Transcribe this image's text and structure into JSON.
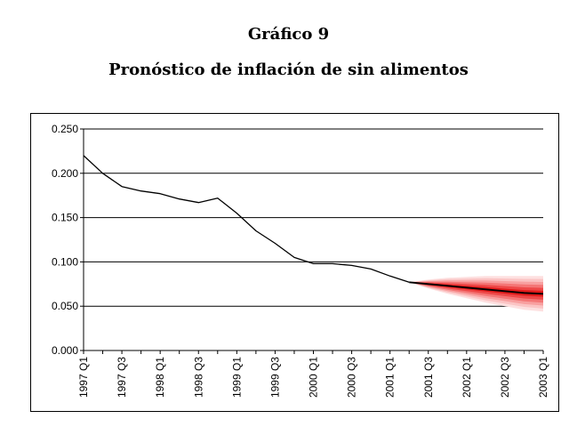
{
  "header": {
    "title": "Gráfico 9",
    "subtitle": "Pronóstico de inflación de sin alimentos"
  },
  "chart_data": {
    "type": "line",
    "title": "Pronóstico de inflación de sin alimentos",
    "xlabel": "",
    "ylabel": "",
    "x_categories": [
      "1997 Q1",
      "1997 Q2",
      "1997 Q3",
      "1997 Q4",
      "1998 Q1",
      "1998 Q2",
      "1998 Q3",
      "1998 Q4",
      "1999 Q1",
      "1999 Q2",
      "1999 Q3",
      "1999 Q4",
      "2000 Q1",
      "2000 Q2",
      "2000 Q3",
      "2000 Q4",
      "2001 Q1",
      "2001 Q2",
      "2001 Q3",
      "2001 Q4",
      "2002 Q1",
      "2002 Q2",
      "2002 Q3",
      "2002 Q4",
      "2003 Q1"
    ],
    "x_tick_labels": [
      "1997 Q1",
      "1997 Q3",
      "1998 Q1",
      "1998 Q3",
      "1999 Q1",
      "1999 Q3",
      "2000 Q1",
      "2000 Q3",
      "2001 Q1",
      "2001 Q3",
      "2002 Q1",
      "2002 Q3",
      "2003 Q1"
    ],
    "y_ticks": [
      "0.000",
      "0.050",
      "0.100",
      "0.150",
      "0.200",
      "0.250"
    ],
    "ylim": [
      0,
      0.25
    ],
    "grid": "horizontal",
    "series": [
      {
        "values": [
          0.22,
          0.2,
          0.185,
          0.18,
          0.177,
          0.171,
          0.167,
          0.172,
          0.155,
          0.135,
          0.121,
          0.105,
          0.098,
          0.098,
          0.096,
          0.092,
          0.084,
          0.077,
          null,
          null,
          null,
          null,
          null,
          null,
          null
        ],
        "color": "#000000"
      },
      {
        "values": [
          null,
          null,
          null,
          null,
          null,
          null,
          null,
          null,
          null,
          null,
          null,
          null,
          null,
          null,
          null,
          null,
          null,
          0.077,
          0.075,
          0.073,
          0.071,
          0.069,
          0.067,
          0.065,
          0.064
        ],
        "color": "#000000"
      }
    ],
    "fan": {
      "start_index": 17,
      "center": [
        0.077,
        0.075,
        0.073,
        0.071,
        0.069,
        0.067,
        0.065,
        0.064
      ],
      "bands": [
        {
          "spread": [
            0.0,
            0.005,
            0.009,
            0.012,
            0.015,
            0.017,
            0.019,
            0.02
          ],
          "color": "#fde0e0"
        },
        {
          "spread": [
            0.0,
            0.0042,
            0.0075,
            0.01,
            0.0125,
            0.0142,
            0.0158,
            0.0167
          ],
          "color": "#fbc4c4"
        },
        {
          "spread": [
            0.0,
            0.0033,
            0.006,
            0.008,
            0.01,
            0.0113,
            0.0127,
            0.0133
          ],
          "color": "#f8a0a0"
        },
        {
          "spread": [
            0.0,
            0.0025,
            0.0045,
            0.006,
            0.0075,
            0.0085,
            0.0095,
            0.01
          ],
          "color": "#f47676"
        },
        {
          "spread": [
            0.0,
            0.0017,
            0.003,
            0.004,
            0.005,
            0.0057,
            0.0063,
            0.0067
          ],
          "color": "#ee4848"
        },
        {
          "spread": [
            0.0,
            0.0008,
            0.0015,
            0.002,
            0.0025,
            0.0028,
            0.0032,
            0.0033
          ],
          "color": "#e01a1a"
        }
      ]
    }
  }
}
